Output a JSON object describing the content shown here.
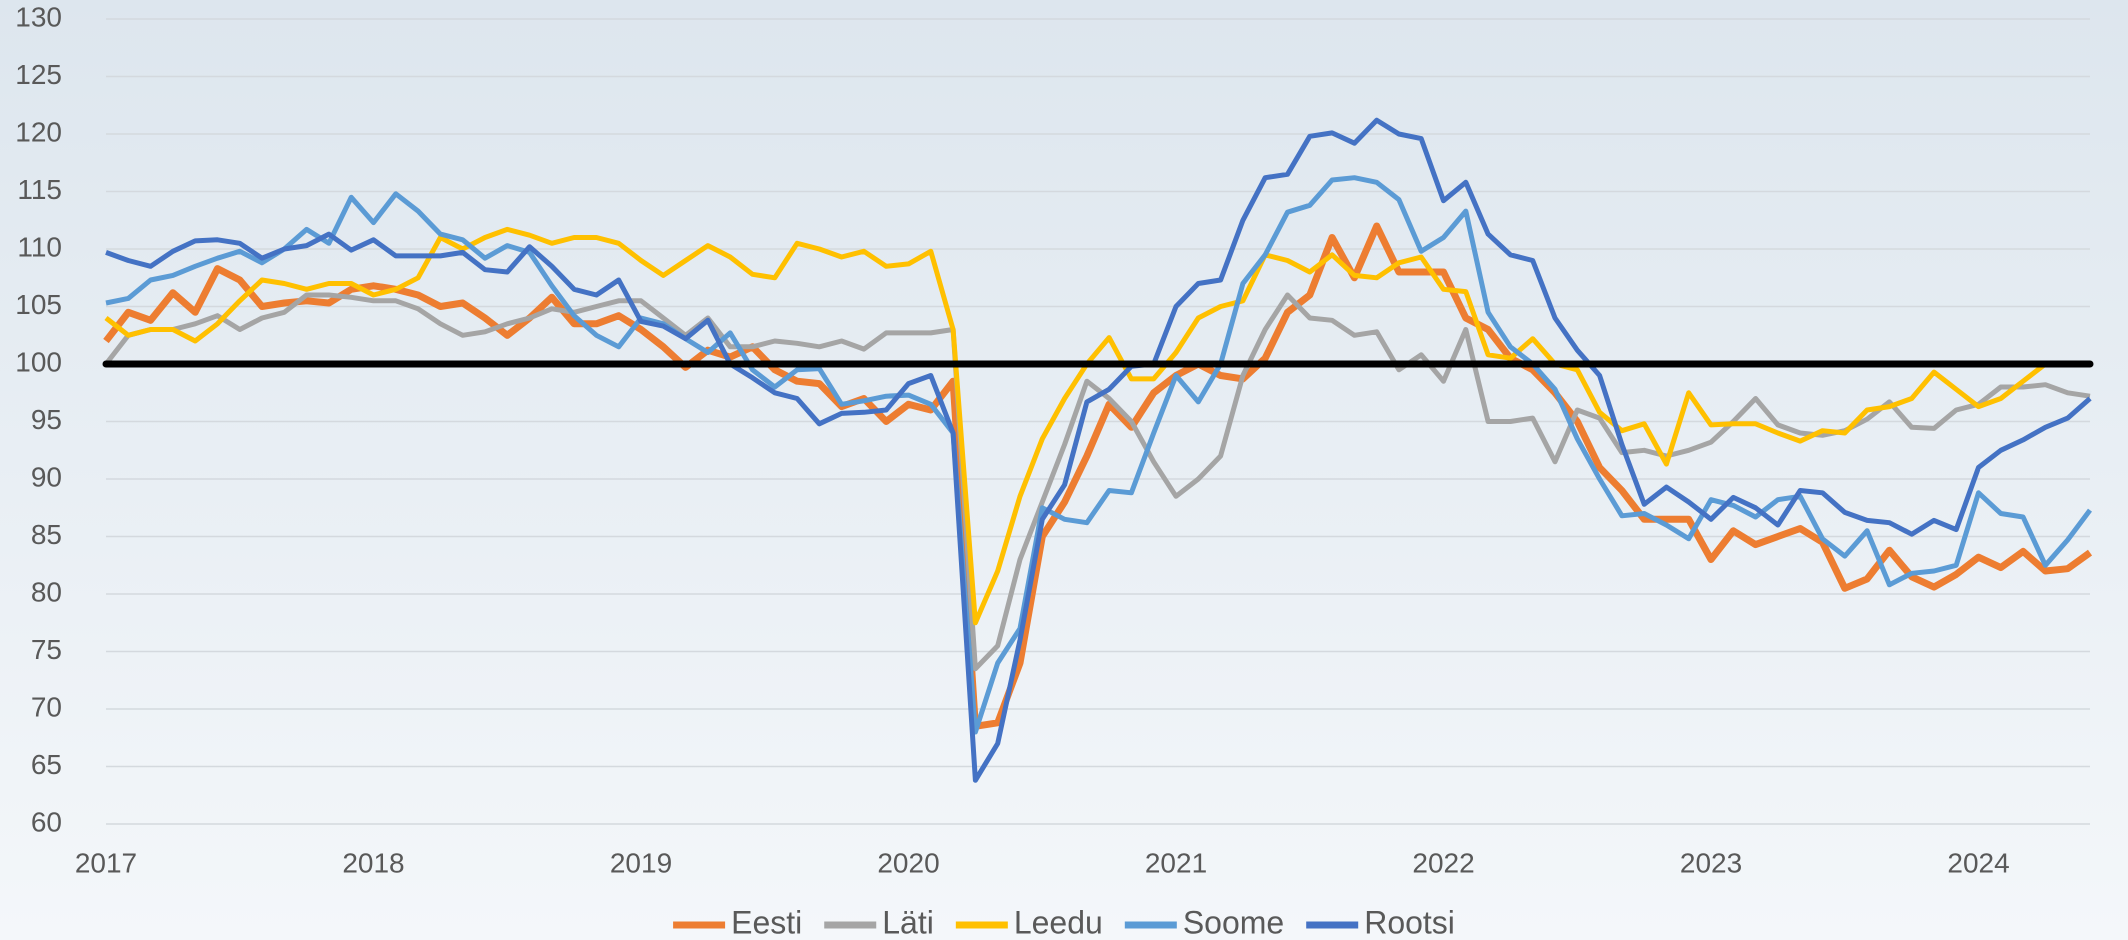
{
  "chart_data": {
    "type": "line",
    "categories": [
      "2017",
      null,
      null,
      null,
      null,
      null,
      null,
      null,
      null,
      null,
      null,
      null,
      "2018",
      null,
      null,
      null,
      null,
      null,
      null,
      null,
      null,
      null,
      null,
      null,
      "2019",
      null,
      null,
      null,
      null,
      null,
      null,
      null,
      null,
      null,
      null,
      null,
      "2020",
      null,
      null,
      null,
      null,
      null,
      null,
      null,
      null,
      null,
      null,
      null,
      "2021",
      null,
      null,
      null,
      null,
      null,
      null,
      null,
      null,
      null,
      null,
      null,
      "2022",
      null,
      null,
      null,
      null,
      null,
      null,
      null,
      null,
      null,
      null,
      null,
      "2023",
      null,
      null,
      null,
      null,
      null,
      null,
      null,
      null,
      null,
      null,
      null,
      "2024",
      null,
      null,
      null,
      null,
      null
    ],
    "series": [
      {
        "name": "Eesti",
        "color": "#ED7D31",
        "width": 7,
        "values": [
          102,
          104.5,
          103.8,
          106.2,
          104.5,
          108.3,
          107.3,
          105,
          105.3,
          105.5,
          105.3,
          106.5,
          106.8,
          106.5,
          106,
          105,
          105.3,
          104,
          102.5,
          104,
          105.8,
          103.5,
          103.5,
          104.2,
          103,
          101.5,
          99.7,
          101.2,
          100.6,
          101.5,
          99.5,
          98.5,
          98.3,
          96.3,
          97,
          95,
          96.5,
          96,
          98.5,
          68.5,
          68.8,
          74,
          85,
          88,
          92,
          96.5,
          94.5,
          97.5,
          99,
          100,
          99,
          98.7,
          100.5,
          104.5,
          106,
          111,
          107.5,
          112,
          108,
          108,
          108,
          104,
          103,
          100.5,
          99.5,
          97.5,
          95,
          91,
          89,
          86.5,
          86.5,
          86.5,
          83,
          85.5,
          84.3,
          85,
          85.7,
          84.5,
          80.5,
          81.3,
          83.8,
          81.5,
          80.6,
          81.7,
          83.2,
          82.3,
          83.7,
          82,
          82.2,
          83.6
        ]
      },
      {
        "name": "Läti",
        "color": "#A5A5A5",
        "width": 5,
        "values": [
          100,
          102.5,
          103,
          103,
          103.5,
          104.2,
          103,
          104,
          104.5,
          106,
          106,
          105.8,
          105.5,
          105.5,
          104.8,
          103.5,
          102.5,
          102.8,
          103.5,
          104,
          104.8,
          104.5,
          105,
          105.5,
          105.5,
          104,
          102.5,
          104,
          101.5,
          101.5,
          102,
          101.8,
          101.5,
          102,
          101.3,
          102.7,
          102.7,
          102.7,
          103,
          73.5,
          75.5,
          83,
          88,
          93,
          98.5,
          97,
          95,
          91.5,
          88.5,
          90,
          92,
          99,
          103,
          106,
          104,
          103.8,
          102.5,
          102.8,
          99.5,
          100.8,
          98.5,
          103,
          95,
          95,
          95.3,
          91.5,
          96,
          95.3,
          92.3,
          92.5,
          92,
          92.5,
          93.2,
          95,
          97,
          94.7,
          94,
          93.8,
          94.2,
          95.2,
          96.7,
          94.5,
          94.4,
          96,
          96.5,
          98,
          98,
          98.2,
          97.5,
          97.2
        ]
      },
      {
        "name": "Leedu",
        "color": "#FFC000",
        "width": 5,
        "values": [
          104,
          102.5,
          103,
          103,
          102,
          103.5,
          105.5,
          107.3,
          107,
          106.5,
          107,
          107,
          106,
          106.5,
          107.5,
          111,
          110,
          111,
          111.7,
          111.2,
          110.5,
          111,
          111,
          110.5,
          109,
          107.7,
          109,
          110.3,
          109.3,
          107.8,
          107.5,
          110.5,
          110,
          109.3,
          109.8,
          108.5,
          108.7,
          109.8,
          103,
          77.5,
          82,
          88.5,
          93.5,
          97,
          100,
          102.3,
          98.7,
          98.7,
          101,
          104,
          105,
          105.5,
          109.5,
          109,
          108,
          109.5,
          107.7,
          107.5,
          108.8,
          109.3,
          106.5,
          106.3,
          100.8,
          100.5,
          102.2,
          100,
          99.5,
          95.8,
          94.2,
          94.8,
          91.3,
          97.5,
          94.7,
          94.8,
          94.8,
          94,
          93.3,
          94.2,
          94,
          96,
          96.3,
          97,
          99.3,
          97.8,
          96.3,
          97,
          98.5,
          100,
          100,
          100
        ]
      },
      {
        "name": "Soome",
        "color": "#5B9BD5",
        "width": 5,
        "values": [
          105.3,
          105.7,
          107.3,
          107.7,
          108.5,
          109.2,
          109.8,
          108.8,
          110,
          111.7,
          110.5,
          114.5,
          112.3,
          114.8,
          113.3,
          111.3,
          110.8,
          109.2,
          110.3,
          109.7,
          106.8,
          104.2,
          102.5,
          101.5,
          104,
          103.5,
          102.2,
          101,
          102.7,
          99.5,
          98,
          99.5,
          99.6,
          96.5,
          96.8,
          97.2,
          97.3,
          96.5,
          94,
          68,
          74,
          77,
          87.5,
          86.5,
          86.2,
          89,
          88.8,
          94,
          99,
          96.7,
          100,
          107,
          109.5,
          113.2,
          113.8,
          116,
          116.2,
          115.8,
          114.3,
          109.8,
          111,
          113.3,
          104.5,
          101.5,
          100,
          97.8,
          93.5,
          90,
          86.8,
          87,
          86,
          84.8,
          88.2,
          87.7,
          86.7,
          88.2,
          88.5,
          84.8,
          83.3,
          85.5,
          80.8,
          81.8,
          82,
          82.5,
          88.8,
          87,
          86.7,
          82.5,
          84.7,
          87.3
        ]
      },
      {
        "name": "Rootsi",
        "color": "#4472C4",
        "width": 5,
        "values": [
          109.7,
          109,
          108.5,
          109.8,
          110.7,
          110.8,
          110.5,
          109.2,
          110,
          110.3,
          111.3,
          109.9,
          110.8,
          109.4,
          109.4,
          109.4,
          109.7,
          108.2,
          108,
          110.2,
          108.5,
          106.5,
          106,
          107.3,
          103.7,
          103.3,
          102.2,
          103.8,
          100,
          98.8,
          97.5,
          97,
          94.8,
          95.7,
          95.8,
          96,
          98.3,
          99,
          94,
          63.8,
          67,
          76,
          86.5,
          89.5,
          96.7,
          97.8,
          99.8,
          100,
          105,
          107,
          107.3,
          112.5,
          116.2,
          116.5,
          119.8,
          120.1,
          119.2,
          121.2,
          120,
          119.6,
          114.2,
          115.8,
          111.3,
          109.5,
          109,
          104,
          101.2,
          99,
          93,
          87.8,
          89.3,
          88,
          86.5,
          88.4,
          87.5,
          86,
          89,
          88.8,
          87.1,
          86.4,
          86.2,
          85.2,
          86.4,
          85.6,
          91,
          92.5,
          93.4,
          94.5,
          95.3,
          97
        ]
      }
    ],
    "reference_line": {
      "value": 100,
      "color": "#000000"
    },
    "ylim": [
      60,
      130
    ],
    "yticks": [
      60,
      65,
      70,
      75,
      80,
      85,
      90,
      95,
      100,
      105,
      110,
      115,
      120,
      125,
      130
    ],
    "grid": true,
    "legend": "bottom"
  }
}
